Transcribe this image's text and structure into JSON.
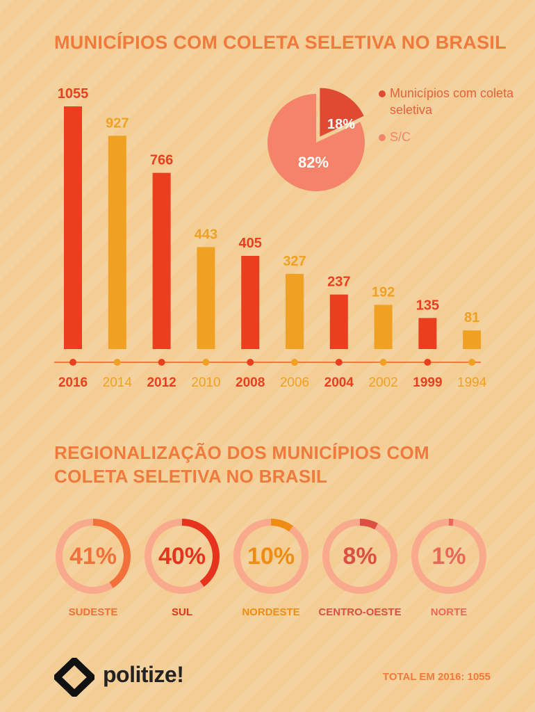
{
  "title": "MUNICÍPIOS COM COLETA SELETIVA NO BRASIL",
  "colors": {
    "red": "#ea3f1f",
    "orange": "#f0a023",
    "axis": "#ef7a3c",
    "coral": "#f4836a",
    "pie_red": "#e04a33",
    "ring_track": "#f9a98c"
  },
  "chart_data": [
    {
      "type": "bar",
      "categories": [
        "2016",
        "2014",
        "2012",
        "2010",
        "2008",
        "2006",
        "2004",
        "2002",
        "1999",
        "1994"
      ],
      "values": [
        1055,
        927,
        766,
        443,
        405,
        327,
        237,
        192,
        135,
        81
      ]
    },
    {
      "type": "pie",
      "labels": [
        "Municípios com coleta seletiva",
        "S/C"
      ],
      "values": [
        18,
        82
      ],
      "value_labels": [
        "18%",
        "82%"
      ],
      "legend": [
        "Municípios com coleta seletiva",
        "S/C"
      ]
    }
  ],
  "regional": {
    "title": "REGIONALIZAÇÃO DOS MUNICÍPIOS COM COLETA SELETIVA NO BRASIL",
    "items": [
      {
        "region": "SUDESTE",
        "value": 41,
        "label": "41%",
        "color": "#f2703a"
      },
      {
        "region": "SUL",
        "value": 40,
        "label": "40%",
        "color": "#e5331d"
      },
      {
        "region": "NORDESTE",
        "value": 10,
        "label": "10%",
        "color": "#ef8c13"
      },
      {
        "region": "CENTRO-OESTE",
        "value": 8,
        "label": "8%",
        "color": "#dc4f43"
      },
      {
        "region": "NORTE",
        "value": 1,
        "label": "1%",
        "color": "#e8695a"
      }
    ]
  },
  "footer": {
    "brand": "politize!",
    "total": "TOTAL EM 2016: 1055"
  }
}
